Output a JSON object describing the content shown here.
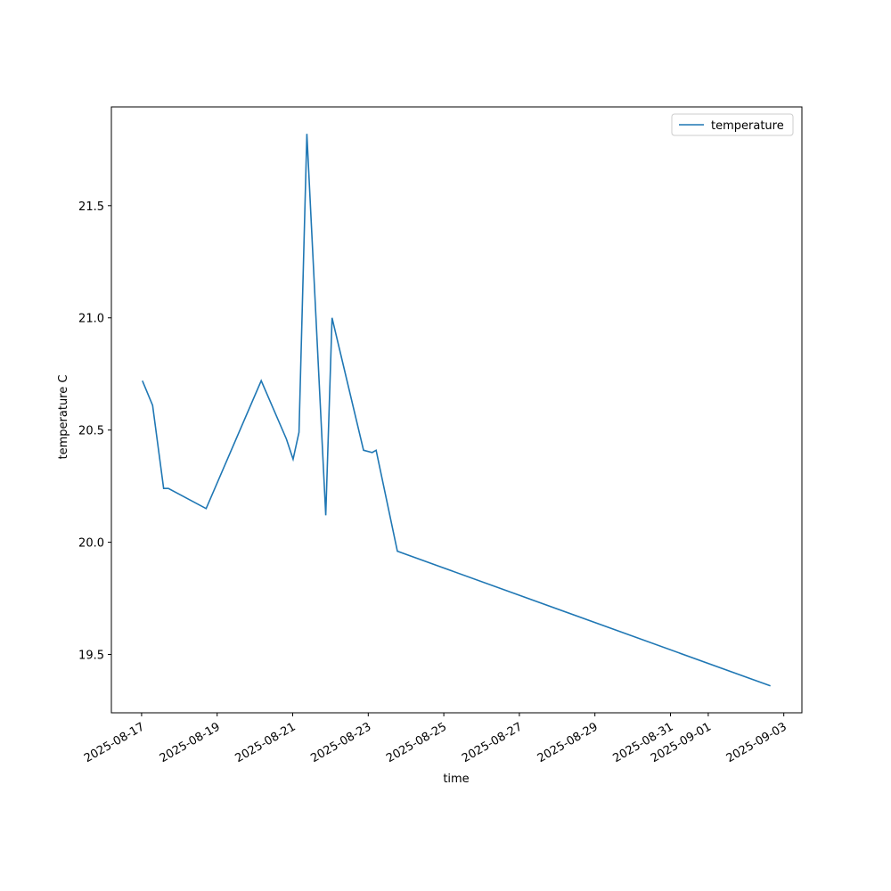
{
  "chart_data": {
    "type": "line",
    "x_label": "time",
    "y_label": "temperature C",
    "x": [
      "2025-08-17T00:30",
      "2025-08-17T07:00",
      "2025-08-17T14:00",
      "2025-08-17T17:00",
      "2025-08-18T17:00",
      "2025-08-20T04:00",
      "2025-08-20T20:00",
      "2025-08-21T00:15",
      "2025-08-21T04:00",
      "2025-08-21T09:00",
      "2025-08-21T21:00",
      "2025-08-22T01:00",
      "2025-08-22T21:00",
      "2025-08-23T02:30",
      "2025-08-23T05:00",
      "2025-08-23T18:30",
      "2025-09-02T15:30"
    ],
    "series": [
      {
        "name": "temperature",
        "color": "#1f77b4",
        "values": [
          20.72,
          20.61,
          20.24,
          20.24,
          20.15,
          20.72,
          20.46,
          20.37,
          20.49,
          21.82,
          20.12,
          21.0,
          20.41,
          20.4,
          20.41,
          19.96,
          19.36
        ]
      }
    ],
    "xlim": [
      "2025-08-16T04:48",
      "2025-09-03T11:30"
    ],
    "xticks": [
      "2025-08-17",
      "2025-08-19",
      "2025-08-21",
      "2025-08-23",
      "2025-08-25",
      "2025-08-27",
      "2025-08-29",
      "2025-08-31",
      "2025-09-01",
      "2025-09-03"
    ],
    "ylim": [
      19.24,
      21.94
    ],
    "yticks": [
      19.5,
      {
        "value": 20,
        "label": "20.0"
      },
      20.5,
      {
        "value": 21,
        "label": "21.0"
      },
      21.5
    ],
    "legend": "upper right",
    "grid": false
  }
}
